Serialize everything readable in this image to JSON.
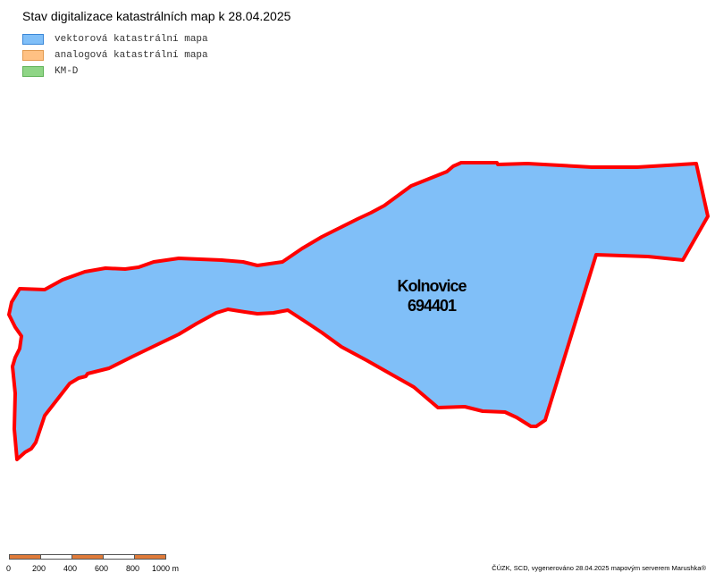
{
  "title": "Stav digitalizace katastrálních map k 28.04.2025",
  "legend": [
    {
      "label": "vektorová katastrální mapa",
      "fill": "#80bff8",
      "stroke": "#3a87d8"
    },
    {
      "label": "analogová katastrální mapa",
      "fill": "#ffc183",
      "stroke": "#e29a4f"
    },
    {
      "label": "KM-D",
      "fill": "#8fd586",
      "stroke": "#5fb257"
    }
  ],
  "area": {
    "name": "Kolnovice",
    "code": "694401",
    "fill": "#80bff8",
    "border": "#ff0000"
  },
  "scale": {
    "labels": [
      "0",
      "200",
      "400",
      "600",
      "800",
      "1000 m"
    ],
    "colors": [
      "#e07b39",
      "#ffffff",
      "#e07b39",
      "#ffffff",
      "#e07b39"
    ]
  },
  "attribution": "ČÚZK, SCD, vygenerováno 28.04.2025 mapovým serverem Marushka®"
}
